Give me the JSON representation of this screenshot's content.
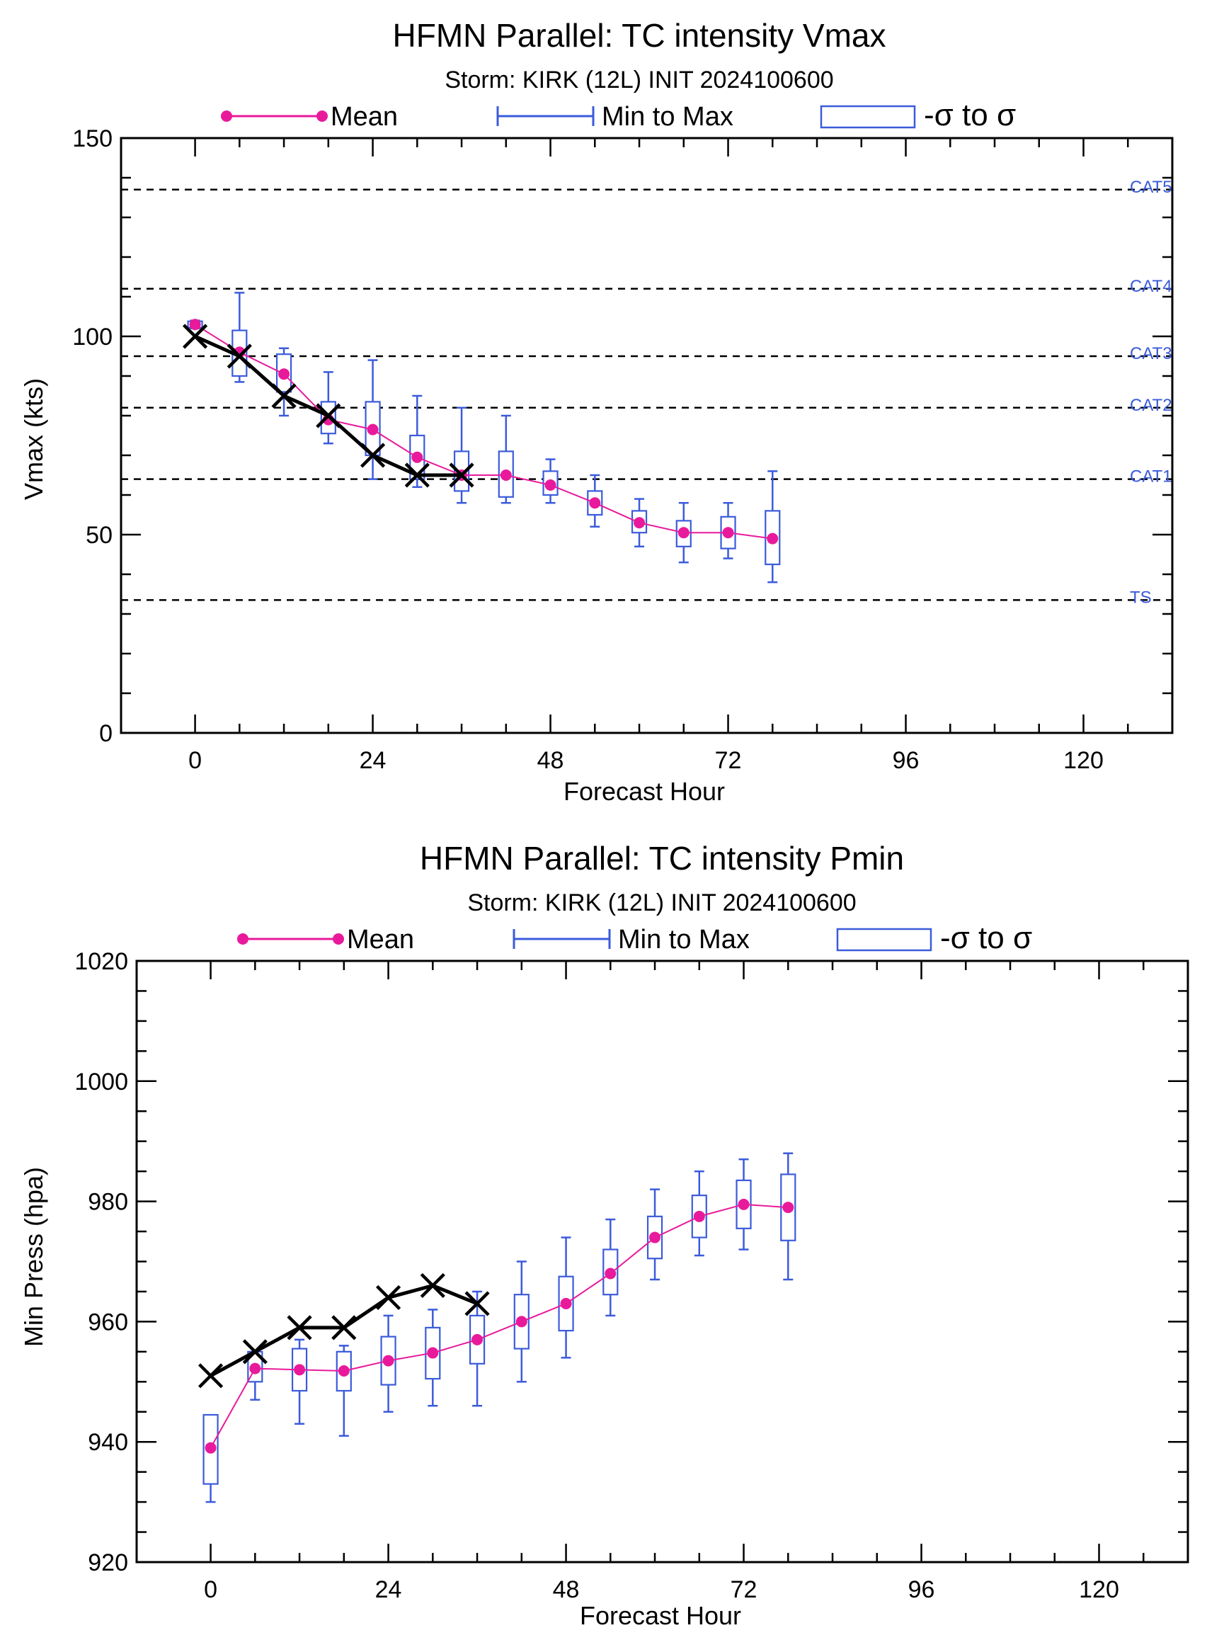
{
  "chart_data": [
    {
      "type": "box",
      "title": "HFMN Parallel: TC intensity Vmax",
      "subtitle": "Storm: KIRK (12L) INIT 2024100600",
      "xlabel": "Forecast Hour",
      "ylabel": "Vmax (kts)",
      "xlim": [
        -10,
        132
      ],
      "ylim": [
        0,
        150
      ],
      "xticks": [
        0,
        24,
        48,
        72,
        96,
        120
      ],
      "yticks": [
        0,
        50,
        100,
        150
      ],
      "legend": {
        "placement": "top",
        "mean_label": "Mean",
        "minmax_label": "Min to Max",
        "sigma_label": "-σ to σ"
      },
      "reference_lines": [
        {
          "label": "CAT5",
          "y": 137
        },
        {
          "label": "CAT4",
          "y": 112
        },
        {
          "label": "CAT3",
          "y": 95
        },
        {
          "label": "CAT2",
          "y": 82
        },
        {
          "label": "CAT1",
          "y": 64
        },
        {
          "label": "TS",
          "y": 33.5
        }
      ],
      "ensemble": [
        {
          "x": 0,
          "mean": 103,
          "min": 102,
          "max": 104,
          "sigma_low": 102.2,
          "sigma_high": 103.8
        },
        {
          "x": 6,
          "mean": 96,
          "min": 88.5,
          "max": 111,
          "sigma_low": 90,
          "sigma_high": 101.5
        },
        {
          "x": 12,
          "mean": 90.5,
          "min": 80,
          "max": 97,
          "sigma_low": 86,
          "sigma_high": 95.5
        },
        {
          "x": 18,
          "mean": 79,
          "min": 73,
          "max": 91,
          "sigma_low": 75.5,
          "sigma_high": 83.5
        },
        {
          "x": 24,
          "mean": 76.5,
          "min": 64,
          "max": 94,
          "sigma_low": 70,
          "sigma_high": 83.5
        },
        {
          "x": 30,
          "mean": 69.5,
          "min": 62,
          "max": 85,
          "sigma_low": 64,
          "sigma_high": 75
        },
        {
          "x": 36,
          "mean": 65,
          "min": 58,
          "max": 82,
          "sigma_low": 61,
          "sigma_high": 71
        },
        {
          "x": 42,
          "mean": 65,
          "min": 58,
          "max": 80,
          "sigma_low": 59.5,
          "sigma_high": 71
        },
        {
          "x": 48,
          "mean": 62.5,
          "min": 58,
          "max": 69,
          "sigma_low": 60,
          "sigma_high": 66
        },
        {
          "x": 54,
          "mean": 58,
          "min": 52,
          "max": 65,
          "sigma_low": 55,
          "sigma_high": 61
        },
        {
          "x": 60,
          "mean": 53,
          "min": 47,
          "max": 59,
          "sigma_low": 50.5,
          "sigma_high": 56
        },
        {
          "x": 66,
          "mean": 50.5,
          "min": 43,
          "max": 58,
          "sigma_low": 47,
          "sigma_high": 53.5
        },
        {
          "x": 72,
          "mean": 50.5,
          "min": 44,
          "max": 58,
          "sigma_low": 46.5,
          "sigma_high": 54.5
        },
        {
          "x": 78,
          "mean": 49,
          "min": 38,
          "max": 66,
          "sigma_low": 42.5,
          "sigma_high": 56
        }
      ],
      "observed": [
        {
          "x": 0,
          "y": 100
        },
        {
          "x": 6,
          "y": 95
        },
        {
          "x": 12,
          "y": 85
        },
        {
          "x": 18,
          "y": 80
        },
        {
          "x": 24,
          "y": 70
        },
        {
          "x": 30,
          "y": 65
        },
        {
          "x": 36,
          "y": 65
        }
      ],
      "colors": {
        "mean": "#e81a9b",
        "box": "#3b5bdb",
        "observed": "#000000",
        "ref_line": "#000000",
        "ref_label": "#3b5bdb"
      }
    },
    {
      "type": "box",
      "title": "HFMN Parallel: TC intensity Pmin",
      "subtitle": "Storm: KIRK (12L) INIT 2024100600",
      "xlabel": "Forecast Hour",
      "ylabel": "Min Press (hpa)",
      "xlim": [
        -10,
        132
      ],
      "ylim": [
        920,
        1020
      ],
      "xticks": [
        0,
        24,
        48,
        72,
        96,
        120
      ],
      "yticks": [
        920,
        940,
        960,
        980,
        1000,
        1020
      ],
      "legend": {
        "placement": "top",
        "mean_label": "Mean",
        "minmax_label": "Min to Max",
        "sigma_label": "-σ to σ"
      },
      "ensemble": [
        {
          "x": 0,
          "mean": 939,
          "min": 930,
          "max": 943,
          "sigma_low": 933,
          "sigma_high": 944.5
        },
        {
          "x": 6,
          "mean": 952.2,
          "min": 947,
          "max": 955,
          "sigma_low": 950,
          "sigma_high": 955
        },
        {
          "x": 12,
          "mean": 952,
          "min": 943,
          "max": 957,
          "sigma_low": 948.5,
          "sigma_high": 955.5
        },
        {
          "x": 18,
          "mean": 951.8,
          "min": 941,
          "max": 956,
          "sigma_low": 948.5,
          "sigma_high": 955
        },
        {
          "x": 24,
          "mean": 953.5,
          "min": 945,
          "max": 961,
          "sigma_low": 949.5,
          "sigma_high": 957.5
        },
        {
          "x": 30,
          "mean": 954.8,
          "min": 946,
          "max": 962,
          "sigma_low": 950.5,
          "sigma_high": 959
        },
        {
          "x": 36,
          "mean": 957,
          "min": 946,
          "max": 965,
          "sigma_low": 953,
          "sigma_high": 961
        },
        {
          "x": 42,
          "mean": 960,
          "min": 950,
          "max": 970,
          "sigma_low": 955.5,
          "sigma_high": 964.5
        },
        {
          "x": 48,
          "mean": 963,
          "min": 954,
          "max": 974,
          "sigma_low": 958.5,
          "sigma_high": 967.5
        },
        {
          "x": 54,
          "mean": 968,
          "min": 961,
          "max": 977,
          "sigma_low": 964.5,
          "sigma_high": 972
        },
        {
          "x": 60,
          "mean": 974,
          "min": 967,
          "max": 982,
          "sigma_low": 970.5,
          "sigma_high": 977.5
        },
        {
          "x": 66,
          "mean": 977.5,
          "min": 971,
          "max": 985,
          "sigma_low": 974,
          "sigma_high": 981
        },
        {
          "x": 72,
          "mean": 979.5,
          "min": 972,
          "max": 987,
          "sigma_low": 975.5,
          "sigma_high": 983.5
        },
        {
          "x": 78,
          "mean": 979,
          "min": 967,
          "max": 988,
          "sigma_low": 973.5,
          "sigma_high": 984.5
        }
      ],
      "observed": [
        {
          "x": 0,
          "y": 951
        },
        {
          "x": 6,
          "y": 955
        },
        {
          "x": 12,
          "y": 959
        },
        {
          "x": 18,
          "y": 959
        },
        {
          "x": 24,
          "y": 964
        },
        {
          "x": 30,
          "y": 966
        },
        {
          "x": 36,
          "y": 963
        }
      ],
      "colors": {
        "mean": "#e81a9b",
        "box": "#3b5bdb",
        "observed": "#000000"
      }
    }
  ]
}
